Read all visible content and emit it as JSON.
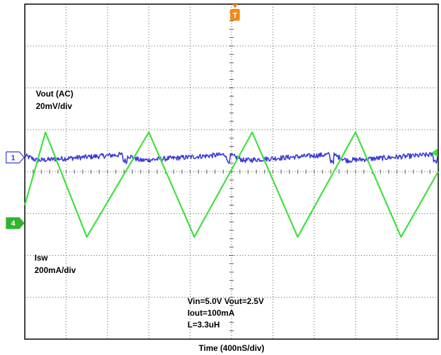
{
  "chart_data": {
    "type": "line",
    "xlabel": "Time  (400nS/div)",
    "x_divisions": 10,
    "y_divisions": 8,
    "trigger_marker": "T",
    "series": [
      {
        "name": "Vout (AC)",
        "channel": "1",
        "scale": "20mV/div",
        "color": "#3b3bd6",
        "shape": "ripple",
        "ref_div": 3.66,
        "amplitude_div": 0.12,
        "period_div": 2.5,
        "jump_phase": 0.85,
        "noise_div": 0.06,
        "points": 640
      },
      {
        "name": "Isw",
        "channel": "4",
        "scale": "200mA/div",
        "color": "#3ee03e",
        "shape": "triangle",
        "ref_div": 5.23,
        "peaks": [
          {
            "time_div": 0.5,
            "level_div": 3.06
          },
          {
            "time_div": 1.5,
            "level_div": 5.56
          },
          {
            "time_div": 3.0,
            "level_div": 3.06
          },
          {
            "time_div": 4.1,
            "level_div": 5.56
          },
          {
            "time_div": 5.5,
            "level_div": 3.06
          },
          {
            "time_div": 6.6,
            "level_div": 5.56
          },
          {
            "time_div": 8.0,
            "level_div": 3.06
          },
          {
            "time_div": 9.1,
            "level_div": 5.56
          }
        ],
        "start": {
          "time_div": 0.0,
          "level_div": 4.8
        },
        "end": {
          "time_div": 10.0,
          "level_div": 4.0
        }
      }
    ],
    "annotations": [
      "Vin=5.0V  Vout=2.5V",
      "Iout=100mA",
      "L=3.3uH"
    ],
    "grid": true
  }
}
